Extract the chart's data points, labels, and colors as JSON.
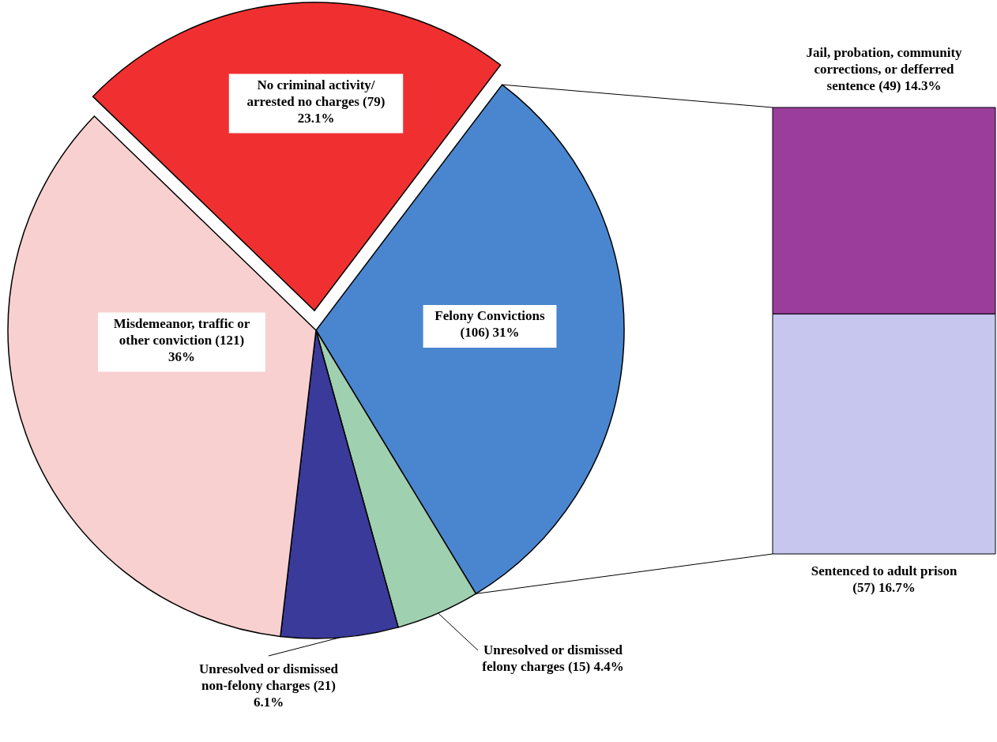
{
  "chart_data": [
    {
      "type": "pie",
      "categories": [
        "No criminal activity/ arrested no charges",
        "Felony Convictions",
        "Unresolved or dismissed felony charges",
        "Unresolved or dismissed non-felony charges",
        "Misdemeanor, traffic or other conviction"
      ],
      "values": [
        79,
        106,
        15,
        21,
        121
      ],
      "colors": [
        "#f03030",
        "#4a86cf",
        "#9fd0b0",
        "#3a3a9a",
        "#f8d0d0"
      ],
      "value_labels": [
        "(79) 23.1%",
        "(106) 31%",
        "(15) 4.4%",
        "(21) 6.1%",
        "(121) 36%"
      ]
    },
    {
      "type": "bar",
      "stacked": true,
      "categories": [
        null
      ],
      "series": [
        {
          "name": "Sentenced to adult prison",
          "color": "#c6c6ef",
          "values": [
            57
          ],
          "value_labels": [
            "(57) 16.7%"
          ]
        },
        {
          "name": "Jail, probation, community corrections, or defferred sentence",
          "color": "#9b3d9b",
          "values": [
            49
          ],
          "value_labels": [
            "(49) 14.3%"
          ]
        }
      ]
    }
  ]
}
